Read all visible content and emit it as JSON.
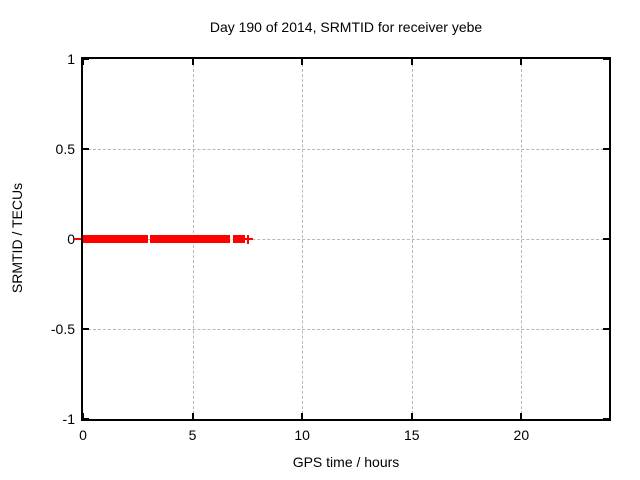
{
  "title": "Day 190 of 2014, SRMTID for receiver yebe",
  "colors": {
    "series": "#ff0000",
    "grid": "#b8b8b8",
    "border": "#000000",
    "text": "#000000",
    "background": "#ffffff"
  },
  "chart_data": {
    "type": "scatter",
    "title": "Day 190 of 2014, SRMTID for receiver yebe",
    "xlabel": "GPS time / hours",
    "ylabel": "SRMTID / TECUs",
    "xlim": [
      0,
      24
    ],
    "ylim": [
      -1,
      1
    ],
    "xticks": [
      0,
      5,
      10,
      15,
      20
    ],
    "yticks": [
      1,
      0.5,
      0,
      -0.5,
      -1
    ],
    "grid": true,
    "legend": false,
    "series": [
      {
        "name": "SRMTID",
        "marker": "plus",
        "color": "#ff0000",
        "y_value": 0,
        "x_segments_hours": [
          [
            0,
            2.95
          ],
          [
            3.05,
            6.7
          ],
          [
            6.85,
            7.4
          ]
        ],
        "isolated_x_hours": [
          7.55
        ]
      }
    ]
  }
}
